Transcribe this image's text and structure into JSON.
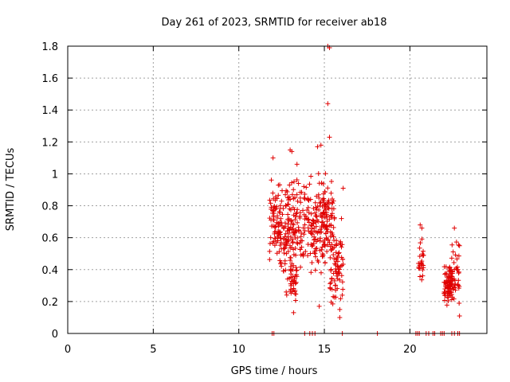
{
  "chart_data": {
    "type": "scatter",
    "title": "Day 261 of 2023, SRMTID for receiver ab18",
    "xlabel": "GPS time / hours",
    "ylabel": "SRMTID / TECUs",
    "xlim": [
      0,
      24.5
    ],
    "ylim": [
      0,
      1.8
    ],
    "xticks": [
      0,
      5,
      10,
      15,
      20
    ],
    "xtick_labels": [
      "0",
      "5",
      "10",
      "15",
      "20"
    ],
    "yticks": [
      0,
      0.2,
      0.4,
      0.6,
      0.8,
      1,
      1.2,
      1.4,
      1.6,
      1.8
    ],
    "ytick_labels": [
      "0",
      "0.2",
      "0.4",
      "0.6",
      "0.8",
      "1",
      "1.2",
      "1.4",
      "1.6",
      "1.8"
    ],
    "grid": true,
    "marker": "+",
    "color": "#e00000",
    "series": [
      {
        "name": "SRMTID",
        "clusters": [
          {
            "x_start": 11.8,
            "x_end": 12.4,
            "count": 70,
            "y_min": 0.3,
            "y_max": 1.1,
            "seed": 11
          },
          {
            "x_start": 12.4,
            "x_end": 13.2,
            "count": 110,
            "y_min": 0.18,
            "y_max": 1.05,
            "seed": 23
          },
          {
            "x_start": 13.0,
            "x_end": 13.4,
            "count": 30,
            "y_min": 0.13,
            "y_max": 0.5,
            "seed": 37
          },
          {
            "x_start": 13.2,
            "x_end": 14.4,
            "count": 110,
            "y_min": 0.3,
            "y_max": 1.05,
            "seed": 41
          },
          {
            "x_start": 14.4,
            "x_end": 15.6,
            "count": 150,
            "y_min": 0.28,
            "y_max": 1.1,
            "seed": 53
          },
          {
            "x_start": 15.3,
            "x_end": 16.1,
            "count": 70,
            "y_min": 0.1,
            "y_max": 0.75,
            "seed": 67
          },
          {
            "x_start": 20.5,
            "x_end": 20.8,
            "count": 25,
            "y_min": 0.18,
            "y_max": 0.68,
            "seed": 71
          },
          {
            "x_start": 22.0,
            "x_end": 22.5,
            "count": 70,
            "y_min": 0.15,
            "y_max": 0.45,
            "seed": 83
          },
          {
            "x_start": 22.3,
            "x_end": 22.9,
            "count": 45,
            "y_min": 0.1,
            "y_max": 0.66,
            "seed": 97
          }
        ],
        "points": [
          {
            "x": 15.2,
            "y": 1.8
          },
          {
            "x": 15.3,
            "y": 1.79
          },
          {
            "x": 15.2,
            "y": 1.44
          },
          {
            "x": 15.3,
            "y": 1.23
          },
          {
            "x": 13.0,
            "y": 1.15
          },
          {
            "x": 13.1,
            "y": 1.14
          },
          {
            "x": 14.6,
            "y": 1.17
          },
          {
            "x": 14.8,
            "y": 1.18
          },
          {
            "x": 12.0,
            "y": 1.1
          },
          {
            "x": 13.4,
            "y": 1.06
          },
          {
            "x": 16.1,
            "y": 0.91
          },
          {
            "x": 16.0,
            "y": 0.72
          },
          {
            "x": 20.6,
            "y": 0.68
          },
          {
            "x": 20.7,
            "y": 0.66
          },
          {
            "x": 22.6,
            "y": 0.66
          },
          {
            "x": 22.9,
            "y": 0.55
          },
          {
            "x": 22.9,
            "y": 0.11
          },
          {
            "x": 15.9,
            "y": 0.15
          },
          {
            "x": 15.9,
            "y": 0.1
          },
          {
            "x": 14.7,
            "y": 0.17
          },
          {
            "x": 13.2,
            "y": 0.13
          }
        ],
        "baseline_points": [
          11.95,
          12.05,
          13.85,
          14.15,
          14.3,
          14.45,
          16.05,
          18.1,
          20.35,
          20.45,
          20.55,
          20.95,
          21.1,
          21.35,
          21.45,
          21.8,
          21.9,
          22.0,
          22.45,
          22.6,
          22.8,
          22.9
        ]
      }
    ]
  }
}
